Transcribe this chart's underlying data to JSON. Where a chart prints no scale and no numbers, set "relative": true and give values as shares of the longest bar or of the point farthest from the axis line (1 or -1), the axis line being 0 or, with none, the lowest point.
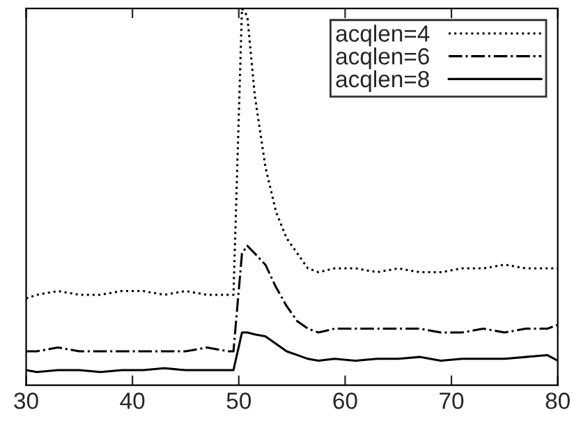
{
  "chart_data": {
    "type": "line",
    "relative": true,
    "xlim": [
      30,
      80
    ],
    "xticks": [
      30,
      40,
      50,
      60,
      70,
      80
    ],
    "tick_labels": "x",
    "legend": "top right",
    "grid": false,
    "series": [
      {
        "name": "acqlen=4",
        "color": "#000000",
        "line_style": "dotted",
        "x": [
          30,
          31,
          33,
          35,
          37,
          39,
          41,
          43,
          45,
          47,
          49,
          49.5,
          50.3,
          50.8,
          51.5,
          52.5,
          53.5,
          54.5,
          55.5,
          56.5,
          57.5,
          59,
          61,
          63,
          65,
          67,
          69,
          71,
          73,
          75,
          77,
          79,
          80
        ],
        "values": [
          0.23,
          0.24,
          0.25,
          0.24,
          0.24,
          0.25,
          0.25,
          0.24,
          0.25,
          0.24,
          0.24,
          0.24,
          1.0,
          0.98,
          0.77,
          0.58,
          0.46,
          0.39,
          0.35,
          0.31,
          0.3,
          0.31,
          0.31,
          0.3,
          0.31,
          0.3,
          0.3,
          0.31,
          0.31,
          0.32,
          0.31,
          0.31,
          0.31
        ]
      },
      {
        "name": "acqlen=6",
        "color": "#000000",
        "line_style": "dashdot",
        "x": [
          30,
          31,
          33,
          35,
          37,
          39,
          41,
          43,
          45,
          47,
          49,
          49.5,
          50.3,
          50.8,
          51.5,
          52.5,
          53.5,
          54.5,
          55.5,
          56.5,
          57.5,
          59,
          61,
          63,
          65,
          67,
          69,
          71,
          73,
          75,
          77,
          79,
          80
        ],
        "values": [
          0.09,
          0.09,
          0.1,
          0.09,
          0.09,
          0.09,
          0.09,
          0.09,
          0.09,
          0.1,
          0.09,
          0.09,
          0.35,
          0.37,
          0.35,
          0.32,
          0.26,
          0.21,
          0.17,
          0.15,
          0.14,
          0.15,
          0.15,
          0.15,
          0.15,
          0.15,
          0.14,
          0.14,
          0.15,
          0.14,
          0.15,
          0.15,
          0.16
        ]
      },
      {
        "name": "acqlen=8",
        "color": "#000000",
        "line_style": "solid",
        "x": [
          30,
          31,
          33,
          35,
          37,
          39,
          41,
          43,
          45,
          47,
          49,
          49.5,
          50.3,
          50.8,
          51.5,
          52.5,
          53.5,
          54.5,
          55.5,
          56.5,
          57.5,
          59,
          61,
          63,
          65,
          67,
          69,
          71,
          73,
          75,
          77,
          79,
          80
        ],
        "values": [
          0.04,
          0.035,
          0.04,
          0.04,
          0.035,
          0.04,
          0.04,
          0.045,
          0.04,
          0.04,
          0.04,
          0.04,
          0.14,
          0.14,
          0.135,
          0.13,
          0.11,
          0.09,
          0.08,
          0.07,
          0.065,
          0.07,
          0.065,
          0.07,
          0.07,
          0.075,
          0.065,
          0.07,
          0.07,
          0.07,
          0.075,
          0.08,
          0.065
        ]
      }
    ]
  }
}
